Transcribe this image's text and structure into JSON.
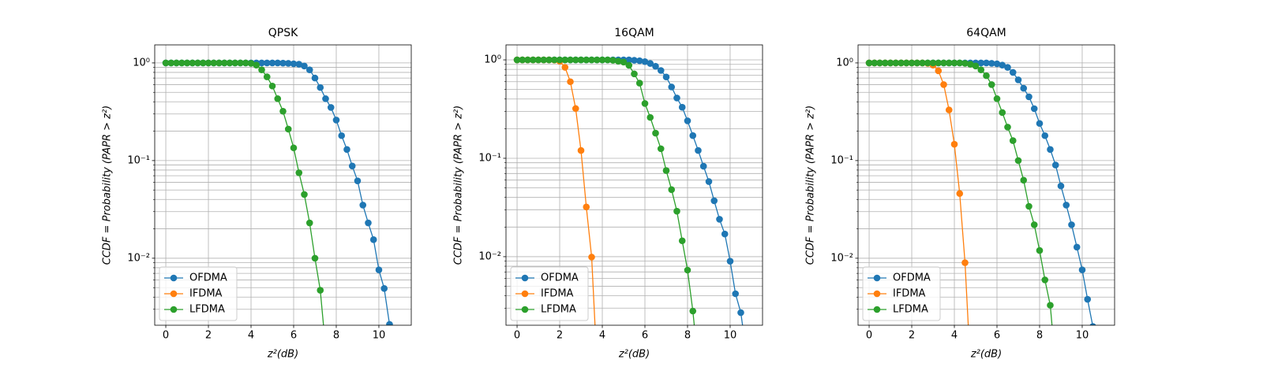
{
  "chart_data": [
    {
      "type": "line",
      "title": "QPSK",
      "xlabel": "z²(dB)",
      "ylabel": "CCDF = Probability (PAPR > z²)",
      "log_y": true,
      "grid": true,
      "legend": "lower left",
      "x": [
        0,
        0.25,
        0.5,
        0.75,
        1,
        1.25,
        1.5,
        1.75,
        2,
        2.25,
        2.5,
        2.75,
        3,
        3.25,
        3.5,
        3.75,
        4,
        4.25,
        4.5,
        4.75,
        5,
        5.25,
        5.5,
        5.75,
        6,
        6.25,
        6.5,
        6.75,
        7,
        7.25,
        7.5,
        7.75,
        8,
        8.25,
        8.5,
        8.75,
        9,
        9.25,
        9.5,
        9.75,
        10,
        10.25,
        10.5,
        10.75,
        11
      ],
      "xlim": [
        -0.52,
        11.52
      ],
      "xticks": [
        0,
        2,
        4,
        6,
        8,
        10
      ],
      "ylim": [
        0.00206,
        1.53
      ],
      "yticks": [
        {
          "value": 0.01,
          "label": "10⁻²"
        },
        {
          "value": 0.1,
          "label": "10⁻¹"
        },
        {
          "value": 1,
          "label": "10⁰"
        }
      ],
      "yminor": [
        0.003,
        0.004,
        0.005,
        0.006,
        0.007,
        0.008,
        0.009,
        0.02,
        0.03,
        0.04,
        0.05,
        0.06,
        0.07,
        0.08,
        0.09,
        0.2,
        0.3,
        0.4,
        0.5,
        0.6,
        0.7,
        0.8,
        0.9
      ],
      "series": [
        {
          "name": "OFDMA",
          "color": "#1f77b4",
          "values": [
            1,
            1,
            1,
            1,
            1,
            1,
            1,
            1,
            1,
            1,
            1,
            1,
            1,
            1,
            1,
            1,
            1,
            1,
            1,
            1,
            1,
            1,
            0.995,
            0.99,
            0.98,
            0.97,
            0.93,
            0.85,
            0.7,
            0.56,
            0.43,
            0.35,
            0.26,
            0.18,
            0.13,
            0.088,
            0.062,
            0.035,
            0.023,
            0.0155,
            0.0076,
            0.0049,
            0.0021,
            0.0008,
            null
          ]
        },
        {
          "name": "IFDMA",
          "color": "#ff7f0e",
          "values": [
            null,
            null,
            null,
            null,
            null,
            null,
            null,
            null,
            null,
            null,
            null,
            null,
            null,
            null,
            null,
            null,
            null,
            null,
            null,
            null,
            null,
            null,
            null,
            null,
            null,
            null,
            null,
            null,
            null,
            null,
            null,
            null,
            null,
            null,
            null,
            null,
            null,
            null,
            null,
            null,
            null,
            null,
            null,
            null,
            null
          ]
        },
        {
          "name": "LFDMA",
          "color": "#2ca02c",
          "values": [
            1,
            1,
            1,
            1,
            1,
            1,
            1,
            1,
            1,
            1,
            1,
            1,
            1,
            1,
            1,
            1,
            0.99,
            0.95,
            0.85,
            0.72,
            0.58,
            0.43,
            0.32,
            0.21,
            0.135,
            0.075,
            0.045,
            0.023,
            0.01,
            0.0047,
            0.0012,
            null,
            null,
            null,
            null,
            null,
            null,
            null,
            null,
            null,
            null,
            null,
            null,
            null,
            null
          ]
        }
      ]
    },
    {
      "type": "line",
      "title": "16QAM",
      "xlabel": "z²(dB)",
      "ylabel": "CCDF = Probability (PAPR > z²)",
      "log_y": true,
      "grid": true,
      "legend": "lower left",
      "x": [
        0,
        0.25,
        0.5,
        0.75,
        1,
        1.25,
        1.5,
        1.75,
        2,
        2.25,
        2.5,
        2.75,
        3,
        3.25,
        3.5,
        3.75,
        4,
        4.25,
        4.5,
        4.75,
        5,
        5.25,
        5.5,
        5.75,
        6,
        6.25,
        6.5,
        6.75,
        7,
        7.25,
        7.5,
        7.75,
        8,
        8.25,
        8.5,
        8.75,
        9,
        9.25,
        9.5,
        9.75,
        10,
        10.25,
        10.5,
        10.75,
        11
      ],
      "xlim": [
        -0.52,
        11.52
      ],
      "xticks": [
        0,
        2,
        4,
        6,
        8,
        10
      ],
      "ylim": [
        0.00201,
        1.42
      ],
      "yticks": [
        {
          "value": 0.01,
          "label": "10⁻²"
        },
        {
          "value": 0.1,
          "label": "10⁻¹"
        },
        {
          "value": 1,
          "label": "10⁰"
        }
      ],
      "yminor": [
        0.003,
        0.004,
        0.005,
        0.006,
        0.007,
        0.008,
        0.009,
        0.02,
        0.03,
        0.04,
        0.05,
        0.06,
        0.07,
        0.08,
        0.09,
        0.2,
        0.3,
        0.4,
        0.5,
        0.6,
        0.7,
        0.8,
        0.9
      ],
      "series": [
        {
          "name": "OFDMA",
          "color": "#1f77b4",
          "values": [
            1,
            1,
            1,
            1,
            1,
            1,
            1,
            1,
            1,
            1,
            1,
            1,
            1,
            1,
            1,
            1,
            1,
            1,
            1,
            1,
            1,
            1,
            0.99,
            0.98,
            0.96,
            0.92,
            0.86,
            0.78,
            0.67,
            0.53,
            0.41,
            0.33,
            0.24,
            0.17,
            0.12,
            0.083,
            0.058,
            0.037,
            0.024,
            0.017,
            0.009,
            0.0042,
            0.0027,
            0.0011,
            null
          ]
        },
        {
          "name": "IFDMA",
          "color": "#ff7f0e",
          "values": [
            1,
            1,
            1,
            1,
            1,
            1,
            1,
            0.995,
            0.97,
            0.84,
            0.6,
            0.32,
            0.12,
            0.032,
            0.0099,
            0.0008,
            null,
            null,
            null,
            null,
            null,
            null,
            null,
            null,
            null,
            null,
            null,
            null,
            null,
            null,
            null,
            null,
            null,
            null,
            null,
            null,
            null,
            null,
            null,
            null,
            null,
            null,
            null,
            null,
            null
          ]
        },
        {
          "name": "LFDMA",
          "color": "#2ca02c",
          "values": [
            1,
            1,
            1,
            1,
            1,
            1,
            1,
            1,
            1,
            1,
            1,
            1,
            1,
            1,
            1,
            1,
            1,
            1,
            0.99,
            0.97,
            0.95,
            0.88,
            0.72,
            0.58,
            0.36,
            0.26,
            0.18,
            0.125,
            0.075,
            0.048,
            0.029,
            0.0145,
            0.0073,
            0.0028,
            0.0008,
            null,
            null,
            null,
            null,
            null,
            null,
            null,
            null,
            null,
            null
          ]
        }
      ]
    },
    {
      "type": "line",
      "title": "64QAM",
      "xlabel": "z²(dB)",
      "ylabel": "CCDF = Probability (PAPR > z²)",
      "log_y": true,
      "grid": true,
      "legend": "lower left",
      "x": [
        0,
        0.25,
        0.5,
        0.75,
        1,
        1.25,
        1.5,
        1.75,
        2,
        2.25,
        2.5,
        2.75,
        3,
        3.25,
        3.5,
        3.75,
        4,
        4.25,
        4.5,
        4.75,
        5,
        5.25,
        5.5,
        5.75,
        6,
        6.25,
        6.5,
        6.75,
        7,
        7.25,
        7.5,
        7.75,
        8,
        8.25,
        8.5,
        8.75,
        9,
        9.25,
        9.5,
        9.75,
        10,
        10.25,
        10.5,
        10.75,
        11
      ],
      "xlim": [
        -0.52,
        11.52
      ],
      "xticks": [
        0,
        2,
        4,
        6,
        8,
        10
      ],
      "ylim": [
        0.00206,
        1.53
      ],
      "yticks": [
        {
          "value": 0.01,
          "label": "10⁻²"
        },
        {
          "value": 0.1,
          "label": "10⁻¹"
        },
        {
          "value": 1,
          "label": "10⁰"
        }
      ],
      "yminor": [
        0.003,
        0.004,
        0.005,
        0.006,
        0.007,
        0.008,
        0.009,
        0.02,
        0.03,
        0.04,
        0.05,
        0.06,
        0.07,
        0.08,
        0.09,
        0.2,
        0.3,
        0.4,
        0.5,
        0.6,
        0.7,
        0.8,
        0.9
      ],
      "series": [
        {
          "name": "OFDMA",
          "color": "#1f77b4",
          "values": [
            1,
            1,
            1,
            1,
            1,
            1,
            1,
            1,
            1,
            1,
            1,
            1,
            1,
            1,
            1,
            1,
            1,
            1,
            1,
            1,
            1,
            1,
            1,
            0.99,
            0.98,
            0.95,
            0.9,
            0.8,
            0.67,
            0.55,
            0.45,
            0.34,
            0.24,
            0.18,
            0.13,
            0.09,
            0.055,
            0.035,
            0.022,
            0.013,
            0.0076,
            0.0038,
            0.002,
            0.0008,
            null
          ]
        },
        {
          "name": "IFDMA",
          "color": "#ff7f0e",
          "values": [
            1,
            1,
            1,
            1,
            1,
            1,
            1,
            1,
            1,
            1,
            1,
            0.99,
            0.95,
            0.83,
            0.6,
            0.33,
            0.147,
            0.046,
            0.009,
            0.0008,
            null,
            null,
            null,
            null,
            null,
            null,
            null,
            null,
            null,
            null,
            null,
            null,
            null,
            null,
            null,
            null,
            null,
            null,
            null,
            null,
            null,
            null,
            null,
            null,
            null
          ]
        },
        {
          "name": "LFDMA",
          "color": "#2ca02c",
          "values": [
            1,
            1,
            1,
            1,
            1,
            1,
            1,
            1,
            1,
            1,
            1,
            1,
            1,
            1,
            1,
            1,
            1,
            1,
            0.99,
            0.97,
            0.93,
            0.85,
            0.74,
            0.6,
            0.43,
            0.31,
            0.22,
            0.16,
            0.1,
            0.063,
            0.034,
            0.022,
            0.012,
            0.006,
            0.0033,
            0.0008,
            null,
            null,
            null,
            null,
            null,
            null,
            null,
            null,
            null
          ]
        }
      ]
    }
  ]
}
